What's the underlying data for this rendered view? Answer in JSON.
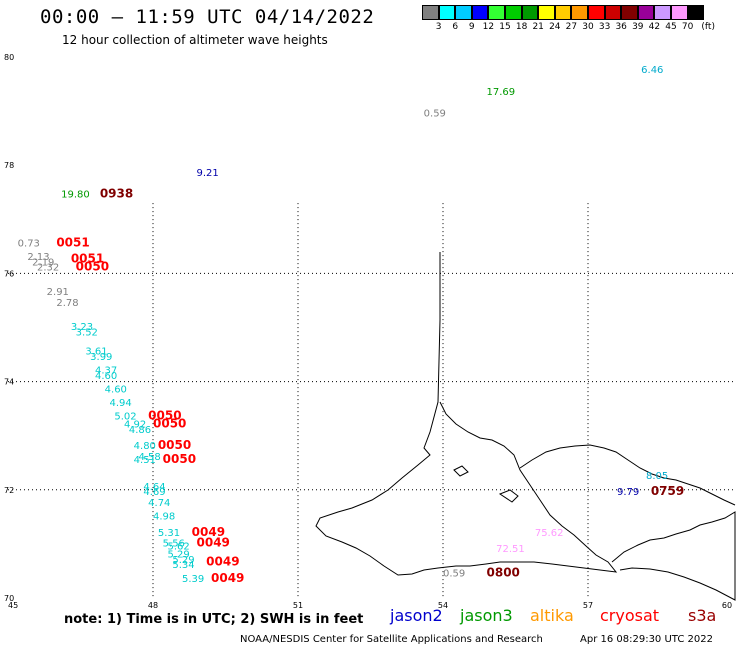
{
  "header": {
    "title": "00:00 — 11:59 UTC 04/14/2022",
    "subtitle": "12 hour collection of altimeter wave heights"
  },
  "legend": {
    "unit": "(ft)",
    "colors": [
      "#808080",
      "#00ffff",
      "#00ccff",
      "#0000ff",
      "#33ff33",
      "#00cc00",
      "#009900",
      "#ffff00",
      "#ffcc00",
      "#ff9900",
      "#ff0000",
      "#cc0000",
      "#800000",
      "#990099",
      "#cc99ff",
      "#ff99ff",
      "#000000"
    ],
    "labels": [
      "3",
      "6",
      "9",
      "12",
      "15",
      "18",
      "21",
      "24",
      "27",
      "30",
      "33",
      "36",
      "39",
      "42",
      "45",
      "70"
    ]
  },
  "axes": {
    "x_ticks": [
      "45",
      "48",
      "51",
      "54",
      "57",
      "60"
    ],
    "y_ticks": [
      "80",
      "78",
      "76",
      "74",
      "72",
      "70"
    ]
  },
  "observations": [
    {
      "text": "6.46",
      "lon": 58.1,
      "lat": 79.7,
      "color": "#00aacc"
    },
    {
      "text": "17.69",
      "lon": 54.9,
      "lat": 79.3,
      "color": "#009900"
    },
    {
      "text": "0.59",
      "lon": 53.6,
      "lat": 78.9,
      "color": "#808080"
    },
    {
      "text": "9.21",
      "lon": 48.9,
      "lat": 77.8,
      "color": "#0000aa"
    },
    {
      "text": "19.80",
      "lon": 46.1,
      "lat": 77.4,
      "color": "#009900"
    },
    {
      "text": "0938",
      "lon": 46.9,
      "lat": 77.4,
      "color": "#800000",
      "time": true
    },
    {
      "text": "0.73",
      "lon": 45.2,
      "lat": 76.5,
      "color": "#808080"
    },
    {
      "text": "0051",
      "lon": 46.0,
      "lat": 76.5,
      "color": "#ff0000",
      "time": true
    },
    {
      "text": "2.13",
      "lon": 45.4,
      "lat": 76.25,
      "color": "#808080"
    },
    {
      "text": "2.19",
      "lon": 45.5,
      "lat": 76.15,
      "color": "#808080"
    },
    {
      "text": "0051",
      "lon": 46.3,
      "lat": 76.2,
      "color": "#ff0000",
      "time": true
    },
    {
      "text": "2.32",
      "lon": 45.6,
      "lat": 76.05,
      "color": "#808080"
    },
    {
      "text": "0050",
      "lon": 46.4,
      "lat": 76.05,
      "color": "#ff0000",
      "time": true
    },
    {
      "text": "2.91",
      "lon": 45.8,
      "lat": 75.6,
      "color": "#808080"
    },
    {
      "text": "2.78",
      "lon": 46.0,
      "lat": 75.4,
      "color": "#808080"
    },
    {
      "text": "3.23",
      "lon": 46.3,
      "lat": 74.95,
      "color": "#00cccc"
    },
    {
      "text": "3.52",
      "lon": 46.4,
      "lat": 74.85,
      "color": "#00cccc"
    },
    {
      "text": "3.61",
      "lon": 46.6,
      "lat": 74.5,
      "color": "#00cccc"
    },
    {
      "text": "3.99",
      "lon": 46.7,
      "lat": 74.4,
      "color": "#00cccc"
    },
    {
      "text": "4.37",
      "lon": 46.8,
      "lat": 74.15,
      "color": "#00cccc"
    },
    {
      "text": "4.60",
      "lon": 46.8,
      "lat": 74.05,
      "color": "#00cccc"
    },
    {
      "text": "4.60",
      "lon": 47.0,
      "lat": 73.8,
      "color": "#00cccc"
    },
    {
      "text": "4.94",
      "lon": 47.1,
      "lat": 73.55,
      "color": "#00cccc"
    },
    {
      "text": "5.02",
      "lon": 47.2,
      "lat": 73.3,
      "color": "#00cccc"
    },
    {
      "text": "0050",
      "lon": 47.9,
      "lat": 73.3,
      "color": "#ff0000",
      "time": true
    },
    {
      "text": "4.92",
      "lon": 47.4,
      "lat": 73.15,
      "color": "#00cccc"
    },
    {
      "text": "0050",
      "lon": 48.0,
      "lat": 73.15,
      "color": "#ff0000",
      "time": true
    },
    {
      "text": "4.86",
      "lon": 47.5,
      "lat": 73.05,
      "color": "#00cccc"
    },
    {
      "text": "4.80",
      "lon": 47.6,
      "lat": 72.75,
      "color": "#00cccc"
    },
    {
      "text": "0050",
      "lon": 48.1,
      "lat": 72.75,
      "color": "#ff0000",
      "time": true
    },
    {
      "text": "4.58",
      "lon": 47.7,
      "lat": 72.55,
      "color": "#00cccc"
    },
    {
      "text": "4.51",
      "lon": 47.6,
      "lat": 72.5,
      "color": "#00cccc"
    },
    {
      "text": "0050",
      "lon": 48.2,
      "lat": 72.5,
      "color": "#ff0000",
      "time": true
    },
    {
      "text": "4.64",
      "lon": 47.8,
      "lat": 72.0,
      "color": "#00cccc"
    },
    {
      "text": "4.69",
      "lon": 47.8,
      "lat": 71.9,
      "color": "#00cccc"
    },
    {
      "text": "4.74",
      "lon": 47.9,
      "lat": 71.7,
      "color": "#00cccc"
    },
    {
      "text": "4.98",
      "lon": 48.0,
      "lat": 71.45,
      "color": "#00cccc"
    },
    {
      "text": "5.31",
      "lon": 48.1,
      "lat": 71.15,
      "color": "#00cccc"
    },
    {
      "text": "0049",
      "lon": 48.8,
      "lat": 71.15,
      "color": "#ff0000",
      "time": true
    },
    {
      "text": "5.56",
      "lon": 48.2,
      "lat": 70.95,
      "color": "#00cccc"
    },
    {
      "text": "5.62",
      "lon": 48.3,
      "lat": 70.9,
      "color": "#00cccc"
    },
    {
      "text": "0049",
      "lon": 48.9,
      "lat": 70.95,
      "color": "#ff0000",
      "time": true
    },
    {
      "text": "5.29",
      "lon": 48.3,
      "lat": 70.75,
      "color": "#00cccc"
    },
    {
      "text": "5.29",
      "lon": 48.4,
      "lat": 70.65,
      "color": "#00cccc"
    },
    {
      "text": "5.34",
      "lon": 48.4,
      "lat": 70.55,
      "color": "#00cccc"
    },
    {
      "text": "0049",
      "lon": 49.1,
      "lat": 70.6,
      "color": "#ff0000",
      "time": true
    },
    {
      "text": "5.39",
      "lon": 48.6,
      "lat": 70.3,
      "color": "#00cccc"
    },
    {
      "text": "0049",
      "lon": 49.2,
      "lat": 70.3,
      "color": "#ff0000",
      "time": true
    },
    {
      "text": "8.05",
      "lon": 58.2,
      "lat": 72.2,
      "color": "#00aacc"
    },
    {
      "text": "9.79",
      "lon": 57.6,
      "lat": 71.9,
      "color": "#0000aa"
    },
    {
      "text": "0759",
      "lon": 58.3,
      "lat": 71.9,
      "color": "#800000",
      "time": true
    },
    {
      "text": "75.62",
      "lon": 55.9,
      "lat": 71.15,
      "color": "#ff99ff"
    },
    {
      "text": "72.51",
      "lon": 55.1,
      "lat": 70.85,
      "color": "#ff99ff"
    },
    {
      "text": "0.59",
      "lon": 54.0,
      "lat": 70.4,
      "color": "#808080"
    },
    {
      "text": "0800",
      "lon": 54.9,
      "lat": 70.4,
      "color": "#800000",
      "time": true
    }
  ],
  "footer": {
    "note": "note:  1) Time is in UTC;  2) SWH is in feet",
    "satellites": [
      {
        "name": "jason2",
        "color": "#0000cc"
      },
      {
        "name": "jason3",
        "color": "#009900"
      },
      {
        "name": "altika",
        "color": "#ff9900"
      },
      {
        "name": "cryosat",
        "color": "#ff0000"
      },
      {
        "name": "s3a",
        "color": "#990000"
      }
    ],
    "credit": "NOAA/NESDIS Center for Satellite Applications and Research",
    "timestamp": "Apr 16 08:29:30 UTC 2022"
  }
}
